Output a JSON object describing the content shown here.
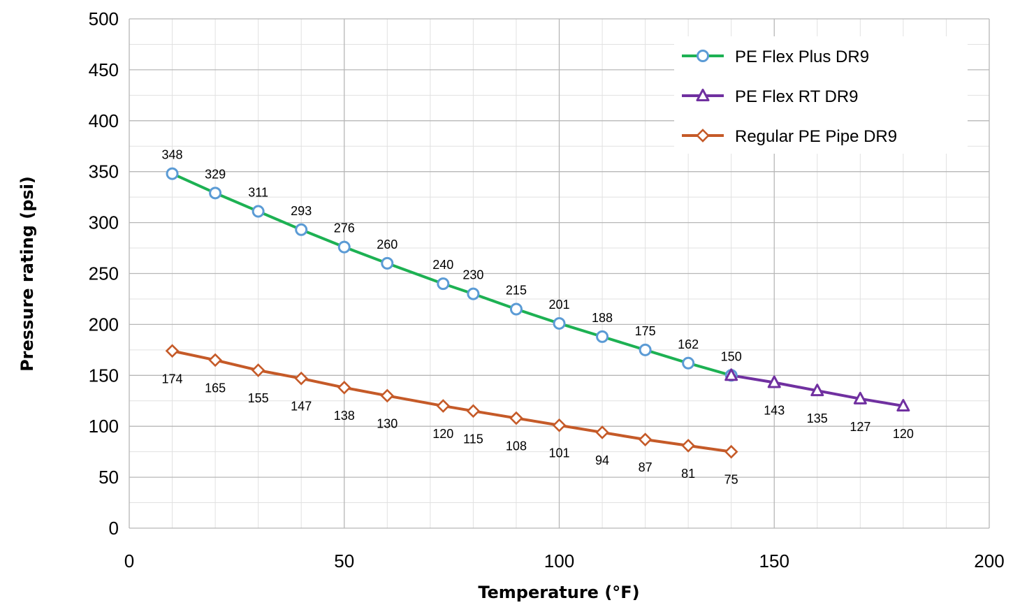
{
  "chart_data": {
    "type": "line",
    "title": "",
    "xlabel": "Temperature (°F)",
    "ylabel": "Pressure rating (psi)",
    "xlim": [
      0,
      200
    ],
    "ylim": [
      0,
      500
    ],
    "x_ticks": [
      0,
      50,
      100,
      150,
      200
    ],
    "y_ticks": [
      0,
      50,
      100,
      150,
      200,
      250,
      300,
      350,
      400,
      450,
      500
    ],
    "grid": "on (major and minor)",
    "legend_position": "top-right",
    "series": [
      {
        "name": "PE Flex Plus DR9",
        "color": "#1db153",
        "marker": "circle",
        "marker_color": "#5b9bd5",
        "label_position": "above",
        "x": [
          10,
          20,
          30,
          40,
          50,
          60,
          73,
          80,
          90,
          100,
          110,
          120,
          130,
          140
        ],
        "y": [
          348,
          329,
          311,
          293,
          276,
          260,
          240,
          230,
          215,
          201,
          188,
          175,
          162,
          150
        ]
      },
      {
        "name": "PE Flex RT DR9",
        "color": "#7030a0",
        "marker": "triangle",
        "marker_color": "#7030a0",
        "label_position": "below",
        "x": [
          140,
          150,
          160,
          170,
          180
        ],
        "y": [
          150,
          143,
          135,
          127,
          120
        ],
        "labels": [
          null,
          "143",
          "135",
          "127",
          "120"
        ]
      },
      {
        "name": "Regular PE Pipe DR9",
        "color": "#c55a28",
        "marker": "diamond",
        "marker_color": "#c55a28",
        "label_position": "below",
        "x": [
          10,
          20,
          30,
          40,
          50,
          60,
          73,
          80,
          90,
          100,
          110,
          120,
          130,
          140
        ],
        "y": [
          174,
          165,
          155,
          147,
          138,
          130,
          120,
          115,
          108,
          101,
          94,
          87,
          81,
          75
        ]
      }
    ]
  }
}
